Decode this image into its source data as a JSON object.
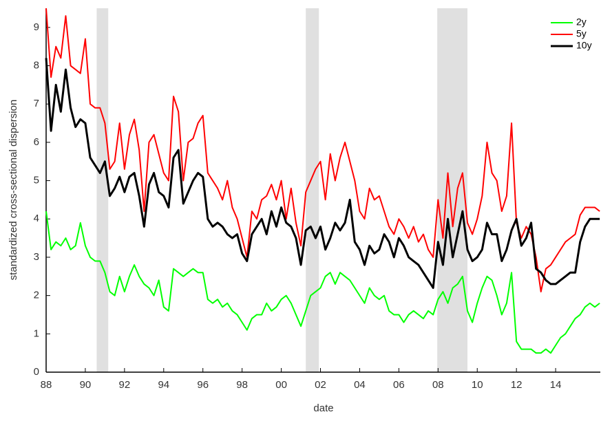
{
  "chart_data": {
    "type": "line",
    "xlabel": "date",
    "ylabel": "standardized cross-sectional dispersion",
    "x": [
      1988,
      1988.25,
      1988.5,
      1988.75,
      1989,
      1989.25,
      1989.5,
      1989.75,
      1990,
      1990.25,
      1990.5,
      1990.75,
      1991,
      1991.25,
      1991.5,
      1991.75,
      1992,
      1992.25,
      1992.5,
      1992.75,
      1993,
      1993.25,
      1993.5,
      1993.75,
      1994,
      1994.25,
      1994.5,
      1994.75,
      1995,
      1995.25,
      1995.5,
      1995.75,
      1996,
      1996.25,
      1996.5,
      1996.75,
      1997,
      1997.25,
      1997.5,
      1997.75,
      1998,
      1998.25,
      1998.5,
      1998.75,
      1999,
      1999.25,
      1999.5,
      1999.75,
      2000,
      2000.25,
      2000.5,
      2000.75,
      2001,
      2001.25,
      2001.5,
      2001.75,
      2002,
      2002.25,
      2002.5,
      2002.75,
      2003,
      2003.25,
      2003.5,
      2003.75,
      2004,
      2004.25,
      2004.5,
      2004.75,
      2005,
      2005.25,
      2005.5,
      2005.75,
      2006,
      2006.25,
      2006.5,
      2006.75,
      2007,
      2007.25,
      2007.5,
      2007.75,
      2008,
      2008.25,
      2008.5,
      2008.75,
      2009,
      2009.25,
      2009.5,
      2009.75,
      2010,
      2010.25,
      2010.5,
      2010.75,
      2011,
      2011.25,
      2011.5,
      2011.75,
      2012,
      2012.25,
      2012.5,
      2012.75,
      2013,
      2013.25,
      2013.5,
      2013.75,
      2014,
      2014.25,
      2014.5,
      2014.75,
      2015,
      2015.25,
      2015.5,
      2015.75,
      2016,
      2016.25
    ],
    "series": [
      {
        "name": "2y",
        "color": "#00ff00",
        "width": 2,
        "values": [
          4.2,
          3.2,
          3.4,
          3.3,
          3.5,
          3.2,
          3.3,
          3.9,
          3.3,
          3.0,
          2.9,
          2.9,
          2.6,
          2.1,
          2.0,
          2.5,
          2.1,
          2.5,
          2.8,
          2.5,
          2.3,
          2.2,
          2.0,
          2.4,
          1.7,
          1.6,
          2.7,
          2.6,
          2.5,
          2.6,
          2.7,
          2.6,
          2.6,
          1.9,
          1.8,
          1.9,
          1.7,
          1.8,
          1.6,
          1.5,
          1.3,
          1.1,
          1.4,
          1.5,
          1.5,
          1.8,
          1.6,
          1.7,
          1.9,
          2.0,
          1.8,
          1.5,
          1.2,
          1.6,
          2.0,
          2.1,
          2.2,
          2.5,
          2.6,
          2.3,
          2.6,
          2.5,
          2.4,
          2.2,
          2.0,
          1.8,
          2.2,
          2.0,
          1.9,
          2.0,
          1.6,
          1.5,
          1.5,
          1.3,
          1.5,
          1.6,
          1.5,
          1.4,
          1.6,
          1.5,
          1.9,
          2.1,
          1.8,
          2.2,
          2.3,
          2.5,
          1.6,
          1.3,
          1.8,
          2.2,
          2.5,
          2.4,
          2.0,
          1.5,
          1.8,
          2.6,
          0.8,
          0.6,
          0.6,
          0.6,
          0.5,
          0.5,
          0.6,
          0.5,
          0.7,
          0.9,
          1.0,
          1.2,
          1.4,
          1.5,
          1.7,
          1.8,
          1.7,
          1.8
        ]
      },
      {
        "name": "5y",
        "color": "#ff0000",
        "width": 2,
        "values": [
          9.5,
          7.7,
          8.5,
          8.2,
          9.3,
          8.0,
          7.9,
          7.8,
          8.7,
          7.0,
          6.9,
          6.9,
          6.5,
          5.3,
          5.5,
          6.5,
          5.3,
          6.2,
          6.6,
          5.8,
          4.2,
          6.0,
          6.2,
          5.7,
          5.2,
          5.0,
          7.2,
          6.8,
          5.0,
          6.0,
          6.1,
          6.5,
          6.7,
          5.2,
          5.0,
          4.8,
          4.5,
          5.0,
          4.3,
          4.0,
          3.5,
          3.0,
          4.2,
          4.0,
          4.5,
          4.6,
          4.9,
          4.5,
          5.0,
          4.0,
          4.8,
          3.9,
          3.3,
          4.7,
          5.0,
          5.3,
          5.5,
          4.5,
          5.7,
          5.0,
          5.6,
          6.0,
          5.5,
          5.0,
          4.2,
          4.0,
          4.8,
          4.5,
          4.6,
          4.2,
          3.8,
          3.6,
          4.0,
          3.8,
          3.5,
          3.8,
          3.4,
          3.6,
          3.2,
          3.0,
          4.5,
          3.5,
          5.2,
          3.8,
          4.8,
          5.2,
          3.9,
          3.6,
          4.0,
          4.6,
          6.0,
          5.2,
          5.0,
          4.2,
          4.6,
          6.5,
          3.9,
          3.5,
          3.8,
          3.6,
          3.0,
          2.1,
          2.7,
          2.8,
          3.0,
          3.2,
          3.4,
          3.5,
          3.6,
          4.1,
          4.3,
          4.3,
          4.3,
          4.2
        ]
      },
      {
        "name": "10y",
        "color": "#000000",
        "width": 3,
        "values": [
          8.2,
          6.3,
          7.5,
          6.8,
          7.9,
          6.9,
          6.4,
          6.6,
          6.5,
          5.6,
          5.4,
          5.2,
          5.5,
          4.6,
          4.8,
          5.1,
          4.7,
          5.1,
          5.2,
          4.6,
          3.8,
          4.9,
          5.2,
          4.7,
          4.6,
          4.3,
          5.6,
          5.8,
          4.4,
          4.7,
          5.0,
          5.2,
          5.1,
          4.0,
          3.8,
          3.9,
          3.8,
          3.6,
          3.5,
          3.6,
          3.1,
          2.9,
          3.6,
          3.8,
          4.0,
          3.6,
          4.2,
          3.8,
          4.3,
          3.9,
          3.8,
          3.5,
          2.8,
          3.7,
          3.8,
          3.5,
          3.8,
          3.2,
          3.5,
          3.9,
          3.7,
          3.9,
          4.5,
          3.4,
          3.2,
          2.8,
          3.3,
          3.1,
          3.2,
          3.6,
          3.4,
          3.0,
          3.5,
          3.3,
          3.0,
          2.9,
          2.8,
          2.6,
          2.4,
          2.2,
          3.4,
          2.8,
          4.0,
          3.0,
          3.6,
          4.2,
          3.2,
          2.9,
          3.0,
          3.2,
          3.9,
          3.6,
          3.6,
          2.9,
          3.2,
          3.7,
          4.0,
          3.3,
          3.5,
          3.9,
          2.7,
          2.6,
          2.4,
          2.3,
          2.3,
          2.4,
          2.5,
          2.6,
          2.6,
          3.4,
          3.8,
          4.0,
          4.0,
          4.0
        ]
      }
    ],
    "shaded_periods": [
      [
        1990.58,
        1991.17
      ],
      [
        2001.25,
        2001.92
      ],
      [
        2007.96,
        2009.5
      ]
    ],
    "shade_color": "#e0e0e0",
    "xlim": [
      1988,
      2016.28
    ],
    "xticks": [
      {
        "value": 1988,
        "label": "88"
      },
      {
        "value": 1990,
        "label": "90"
      },
      {
        "value": 1992,
        "label": "92"
      },
      {
        "value": 1994,
        "label": "94"
      },
      {
        "value": 1996,
        "label": "96"
      },
      {
        "value": 1998,
        "label": "98"
      },
      {
        "value": 2000,
        "label": "00"
      },
      {
        "value": 2002,
        "label": "02"
      },
      {
        "value": 2004,
        "label": "04"
      },
      {
        "value": 2006,
        "label": "06"
      },
      {
        "value": 2008,
        "label": "08"
      },
      {
        "value": 2010,
        "label": "10"
      },
      {
        "value": 2012,
        "label": "12"
      },
      {
        "value": 2014,
        "label": "14"
      }
    ],
    "ylim": [
      0,
      9.5
    ],
    "yticks": [
      0,
      1,
      2,
      3,
      4,
      5,
      6,
      7,
      8,
      9
    ],
    "legend": "upper right"
  }
}
